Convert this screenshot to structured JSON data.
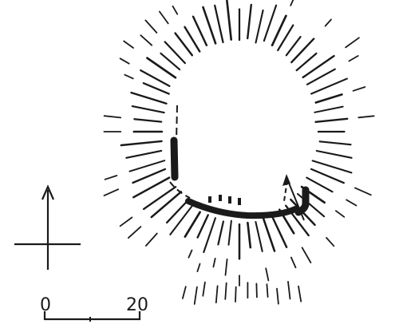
{
  "scale": {
    "start_label": "0",
    "end_label": "20"
  },
  "colors": {
    "ink": "#1a1a1a",
    "paper": "#ffffff"
  },
  "icons": {
    "north": "north-arrow-icon",
    "entrance": "entrance-arrow-icon"
  }
}
